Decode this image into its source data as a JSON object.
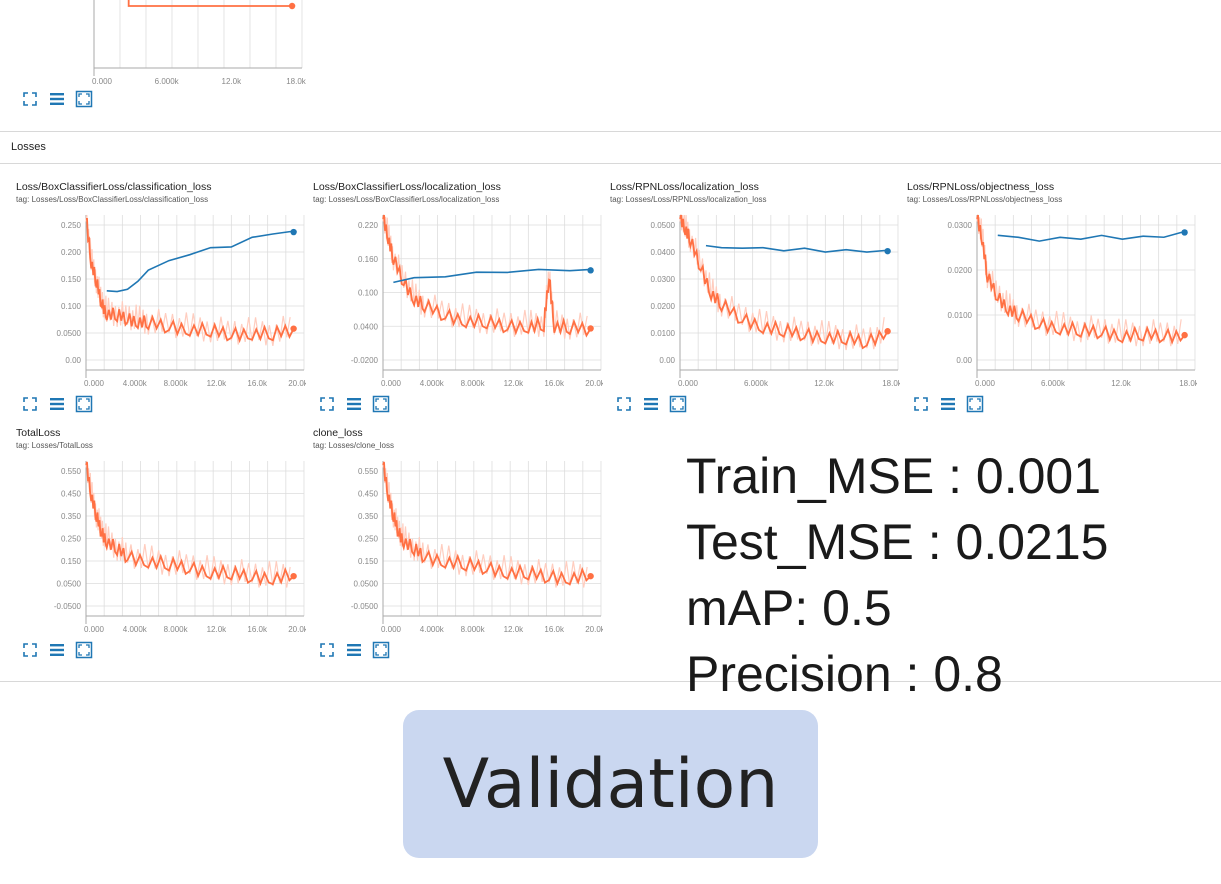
{
  "section": {
    "label": "Losses"
  },
  "colors": {
    "train": "#ff7043",
    "train_light": "#ffcdbf",
    "eval": "#1f77b4",
    "grid": "#dddddd",
    "icon": "#1f77b4"
  },
  "icons": [
    "fit-domain-icon",
    "toggle-log-icon",
    "zoom-icon"
  ],
  "metrics": {
    "train_mse": "Train_MSE : 0.001",
    "test_mse": "Test_MSE : 0.0215",
    "map": "mAP: 0.5",
    "precision": "Precision : 0.8"
  },
  "validation_label": "Validation",
  "chart_data": [
    {
      "type": "line",
      "title": "",
      "xlabel": "",
      "ylabel": "",
      "x_ticks": [
        "0.000",
        "6.000k",
        "12.0k",
        "18.0k"
      ],
      "y_ticks": [],
      "xlim": [
        0,
        21000
      ],
      "series": [
        {
          "x": [
            3500,
            3500,
            20000
          ],
          "values": [
            2,
            1,
            1
          ]
        }
      ]
    },
    {
      "type": "line",
      "title": "Loss/BoxClassifierLoss/classification_loss",
      "tag": "tag: Losses/Loss/BoxClassifierLoss/classification_loss",
      "x_ticks": [
        "0.000",
        "4.000k",
        "8.000k",
        "12.0k",
        "16.0k",
        "20.0k"
      ],
      "y_ticks": [
        "0.250",
        "0.200",
        "0.150",
        "0.100",
        "0.0500",
        "0.00"
      ],
      "xlim": [
        0,
        21000
      ],
      "ylim": [
        -0.03,
        0.27
      ],
      "series": [
        {
          "x": [
            0,
            500,
            1000,
            1500,
            2000,
            3000,
            4000,
            5000,
            6000,
            8000,
            10000,
            12000,
            14000,
            16000,
            18000,
            20000
          ],
          "values": [
            0.27,
            0.18,
            0.14,
            0.1,
            0.08,
            0.075,
            0.07,
            0.065,
            0.06,
            0.055,
            0.05,
            0.045,
            0.04,
            0.042,
            0.038,
            0.05
          ]
        },
        {
          "x": [
            2000,
            3000,
            4000,
            5000,
            6000,
            8000,
            10000,
            12000,
            14000,
            16000,
            18000,
            20000
          ],
          "values": [
            0.125,
            0.12,
            0.128,
            0.14,
            0.165,
            0.18,
            0.195,
            0.205,
            0.21,
            0.225,
            0.235,
            0.237
          ]
        }
      ]
    },
    {
      "type": "line",
      "title": "Loss/BoxClassifierLoss/localization_loss",
      "tag": "tag: Losses/Loss/BoxClassifierLoss/localization_loss",
      "x_ticks": [
        "0.000",
        "4.000k",
        "8.000k",
        "12.0k",
        "16.0k",
        "20.0k"
      ],
      "y_ticks": [
        "0.220",
        "0.160",
        "0.100",
        "0.0400",
        "-0.0200"
      ],
      "xlim": [
        0,
        21000
      ],
      "ylim": [
        -0.04,
        0.24
      ],
      "series": [
        {
          "x": [
            0,
            500,
            1000,
            2000,
            3000,
            4000,
            6000,
            8000,
            10000,
            12000,
            14000,
            15500,
            16000,
            16500,
            18000,
            20000
          ],
          "values": [
            0.24,
            0.2,
            0.16,
            0.12,
            0.09,
            0.075,
            0.06,
            0.05,
            0.045,
            0.04,
            0.04,
            0.04,
            0.13,
            0.04,
            0.035,
            0.035
          ]
        },
        {
          "x": [
            1000,
            3000,
            6000,
            9000,
            12000,
            15000,
            18000,
            20000
          ],
          "values": [
            0.12,
            0.125,
            0.13,
            0.135,
            0.138,
            0.14,
            0.141,
            0.14
          ]
        }
      ]
    },
    {
      "type": "line",
      "title": "Loss/RPNLoss/localization_loss",
      "tag": "tag: Losses/Loss/RPNLoss/localization_loss",
      "x_ticks": [
        "0.000",
        "6.000k",
        "12.0k",
        "18.0k"
      ],
      "y_ticks": [
        "0.0500",
        "0.0400",
        "0.0300",
        "0.0200",
        "0.0100",
        "0.00"
      ],
      "xlim": [
        0,
        21000
      ],
      "ylim": [
        -0.005,
        0.055
      ],
      "series": [
        {
          "x": [
            0,
            500,
            1000,
            2000,
            3000,
            4000,
            6000,
            8000,
            10000,
            12000,
            14000,
            16000,
            18000,
            20000
          ],
          "values": [
            0.055,
            0.05,
            0.045,
            0.035,
            0.025,
            0.02,
            0.015,
            0.012,
            0.01,
            0.009,
            0.008,
            0.007,
            0.006,
            0.01
          ]
        },
        {
          "x": [
            2500,
            4000,
            6000,
            8000,
            10000,
            12000,
            14000,
            16000,
            18000,
            20000
          ],
          "values": [
            0.0435,
            0.042,
            0.0425,
            0.042,
            0.0415,
            0.0418,
            0.041,
            0.0412,
            0.041,
            0.041
          ]
        }
      ]
    },
    {
      "type": "line",
      "title": "Loss/RPNLoss/objectness_loss",
      "tag": "tag: Losses/Loss/RPNLoss/objectness_loss",
      "x_ticks": [
        "0.000",
        "6.000k",
        "12.0k",
        "18.0k"
      ],
      "y_ticks": [
        "0.0300",
        "0.0200",
        "0.0100",
        "0.00"
      ],
      "xlim": [
        0,
        21000
      ],
      "ylim": [
        -0.004,
        0.036
      ],
      "series": [
        {
          "x": [
            0,
            500,
            1000,
            2000,
            3000,
            4000,
            6000,
            8000,
            10000,
            12000,
            14000,
            16000,
            18000,
            20000
          ],
          "values": [
            0.036,
            0.03,
            0.02,
            0.015,
            0.012,
            0.01,
            0.008,
            0.007,
            0.006,
            0.006,
            0.005,
            0.005,
            0.005,
            0.005
          ]
        },
        {
          "x": [
            2000,
            4000,
            6000,
            8000,
            10000,
            12000,
            14000,
            16000,
            18000,
            20000
          ],
          "values": [
            0.031,
            0.03,
            0.0295,
            0.03,
            0.03,
            0.0305,
            0.03,
            0.0303,
            0.0305,
            0.0315
          ]
        }
      ]
    },
    {
      "type": "line",
      "title": "TotalLoss",
      "tag": "tag: Losses/TotalLoss",
      "x_ticks": [
        "0.000",
        "4.000k",
        "8.000k",
        "12.0k",
        "16.0k",
        "20.0k"
      ],
      "y_ticks": [
        "0.550",
        "0.450",
        "0.350",
        "0.250",
        "0.150",
        "0.0500",
        "-0.0500"
      ],
      "xlim": [
        0,
        21000
      ],
      "ylim": [
        -0.1,
        0.6
      ],
      "series": [
        {
          "x": [
            0,
            500,
            1000,
            1500,
            2000,
            3000,
            4000,
            6000,
            8000,
            10000,
            12000,
            14000,
            16000,
            18000,
            20000
          ],
          "values": [
            0.6,
            0.45,
            0.35,
            0.28,
            0.24,
            0.2,
            0.17,
            0.15,
            0.13,
            0.12,
            0.1,
            0.09,
            0.08,
            0.075,
            0.08
          ]
        }
      ]
    },
    {
      "type": "line",
      "title": "clone_loss",
      "tag": "tag: Losses/clone_loss",
      "x_ticks": [
        "0.000",
        "4.000k",
        "8.000k",
        "12.0k",
        "16.0k",
        "20.0k"
      ],
      "y_ticks": [
        "0.550",
        "0.450",
        "0.350",
        "0.250",
        "0.150",
        "0.0500",
        "-0.0500"
      ],
      "xlim": [
        0,
        21000
      ],
      "ylim": [
        -0.1,
        0.6
      ],
      "series": [
        {
          "x": [
            0,
            500,
            1000,
            1500,
            2000,
            3000,
            4000,
            6000,
            8000,
            10000,
            12000,
            14000,
            16000,
            18000,
            20000
          ],
          "values": [
            0.6,
            0.45,
            0.35,
            0.28,
            0.24,
            0.2,
            0.17,
            0.15,
            0.13,
            0.12,
            0.1,
            0.09,
            0.08,
            0.075,
            0.08
          ]
        }
      ]
    }
  ]
}
